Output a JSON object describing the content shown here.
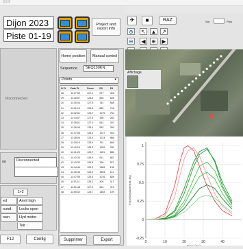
{
  "window": {
    "version": "3.6.0"
  },
  "header": {
    "location": "Dijon 2023",
    "track": "Piste 01-19",
    "project_button": "Project and report info"
  },
  "left_panel": {
    "status_label": "Disconnected",
    "connection_label": "on",
    "connection_value": "Disconnected",
    "range_button": "1>2",
    "state_buttons": [
      "ed",
      "ound",
      "own"
    ],
    "state_labels": [
      "Anvil high",
      "Locks open",
      "Hyd motor",
      "Tair :"
    ],
    "f12_label": "F12",
    "config_button": "Config"
  },
  "controls": {
    "home_button": "Home position",
    "manual_button": "Manual control",
    "sequence_label": "Sequence",
    "sequence_value": "SEQ130KN",
    "points_select": "Points",
    "delete_button": "Supprimer",
    "export_button": "Export"
  },
  "points_table": {
    "headers": [
      "N Pt",
      "Date Pt",
      "Force",
      "D0",
      "D1"
    ],
    "rows": [
      [
        "28",
        "11:27:50",
        "127.0",
        "577",
        "426"
      ],
      [
        "29",
        "11:28:57",
        "125.6",
        "826",
        "628"
      ],
      [
        "30",
        "11:30:04",
        "127.4",
        "781",
        "558"
      ],
      [
        "31",
        "11:31:19",
        "125.6",
        "889",
        "743"
      ],
      [
        "32",
        "11:32:51",
        "124.7",
        "1079",
        "752"
      ],
      [
        "33",
        "11:33:57",
        "127.5",
        "356",
        "283"
      ],
      [
        "34",
        "11:35:01",
        "127.0",
        "542",
        "397"
      ],
      [
        "35",
        "11:36:05",
        "126.4",
        "553",
        "399"
      ],
      [
        "36",
        "11:37:05",
        "126.2",
        "1227",
        "943"
      ],
      [
        "37",
        "11:38:04",
        "124.3",
        "1224",
        "866"
      ],
      [
        "38",
        "11:39:10",
        "125.9",
        "791",
        "669"
      ],
      [
        "39",
        "11:40:16",
        "125.3",
        "1269",
        "930"
      ],
      [
        "40",
        "11:41:24",
        "124.7",
        "1151",
        "886"
      ],
      [
        "41",
        "11:42:30",
        "126.9",
        "911",
        "667"
      ],
      [
        "42",
        "11:43:32",
        "126.8",
        "768",
        "527"
      ],
      [
        "43",
        "11:44:40",
        "122.3",
        "1383",
        "136"
      ],
      [
        "44",
        "11:45:45",
        "123.9",
        "1804",
        "111"
      ],
      [
        "45",
        "11:47:55",
        "125.6",
        "1076",
        "828"
      ],
      [
        "46",
        "11:51:11",
        "128.2",
        "400",
        "317"
      ],
      [
        "47",
        "11:51:48",
        "127.0",
        "644",
        "474"
      ],
      [
        "48",
        "11:55:32",
        "124.7",
        "1463",
        "109"
      ]
    ]
  },
  "map_toolbar": {
    "raz_button": "RAZ",
    "mini_labels": [
      "Sat",
      "Plan"
    ],
    "display_label": "Affichage"
  },
  "icons": {
    "satellite": "satellite-icon",
    "camera": "camera-icon",
    "zoom_in": "zoom-in-icon",
    "zoom_out": "zoom-out-icon",
    "zoom_fit": "zoom-fit-icon",
    "nav_nw": "arrow-up-left-icon",
    "nav_n": "arrow-up-icon",
    "nav_ne": "arrow-up-right-icon",
    "nav_w": "arrow-left-icon",
    "nav_center": "center-target-icon",
    "nav_e": "arrow-right-icon",
    "nav_sw": "arrow-down-left-icon",
    "nav_s": "arrow-down-icon",
    "nav_se": "arrow-down-right-icon",
    "folder": "folder-icon"
  },
  "colors": {
    "folder_button": "#e0a000",
    "green_curve": "#2a9a3a",
    "red_curve": "#e05050",
    "selected_row": "#ffffff"
  },
  "chart_data": {
    "type": "line",
    "xlabel": "Time (ms)",
    "ylabel": "Force/Déplacement (kN)",
    "xlim": [
      0,
      50
    ],
    "ylim": [
      -0.25,
      1.05
    ],
    "xticks": [
      "0",
      "10",
      "20",
      "30",
      "40"
    ],
    "yticks": [
      "1",
      "0.75",
      "0.5",
      "0.25",
      "0",
      "-0.25"
    ],
    "series": [
      {
        "color": "#e05050",
        "x": [
          0,
          5,
          10,
          15,
          18,
          20,
          22,
          25,
          28,
          32,
          36,
          40,
          45
        ],
        "y": [
          0,
          0.01,
          0.08,
          0.45,
          0.8,
          0.97,
          1.0,
          0.93,
          0.72,
          0.45,
          0.25,
          0.12,
          0.05
        ]
      },
      {
        "color": "#f0a0a0",
        "x": [
          0,
          5,
          10,
          15,
          18,
          20,
          22,
          25,
          28,
          32,
          36,
          40,
          45
        ],
        "y": [
          0,
          0.01,
          0.05,
          0.3,
          0.62,
          0.82,
          0.93,
          0.97,
          0.86,
          0.6,
          0.35,
          0.18,
          0.08
        ]
      },
      {
        "color": "#2a9a3a",
        "x": [
          0,
          5,
          10,
          15,
          20,
          25,
          28,
          32,
          36,
          40,
          45
        ],
        "y": [
          0,
          0.0,
          0.02,
          0.1,
          0.35,
          0.72,
          0.88,
          0.95,
          0.8,
          0.5,
          0.25
        ]
      },
      {
        "color": "#2a9a3a",
        "x": [
          0,
          5,
          10,
          15,
          20,
          25,
          28,
          32,
          36,
          40,
          45
        ],
        "y": [
          0,
          0.0,
          0.02,
          0.12,
          0.42,
          0.78,
          0.92,
          0.97,
          0.78,
          0.45,
          0.22
        ]
      },
      {
        "color": "#4cbf55",
        "x": [
          0,
          5,
          10,
          15,
          20,
          25,
          28,
          32,
          36,
          40,
          45
        ],
        "y": [
          0,
          0.0,
          0.01,
          0.06,
          0.25,
          0.55,
          0.72,
          0.78,
          0.66,
          0.42,
          0.2
        ]
      },
      {
        "color": "#4cbf55",
        "x": [
          0,
          5,
          10,
          15,
          20,
          25,
          28,
          32,
          36,
          40,
          45
        ],
        "y": [
          0,
          0.0,
          0.01,
          0.05,
          0.2,
          0.45,
          0.58,
          0.64,
          0.55,
          0.35,
          0.17
        ]
      },
      {
        "color": "#1d7a2c",
        "x": [
          0,
          5,
          10,
          15,
          20,
          25,
          28,
          32,
          36,
          40,
          45
        ],
        "y": [
          0,
          0.0,
          0.01,
          0.04,
          0.15,
          0.32,
          0.42,
          0.47,
          0.42,
          0.28,
          0.14
        ]
      },
      {
        "color": "#88d48f",
        "x": [
          0,
          5,
          10,
          15,
          20,
          25,
          28,
          32,
          36,
          40,
          45
        ],
        "y": [
          0,
          0.0,
          0.0,
          0.03,
          0.1,
          0.22,
          0.3,
          0.33,
          0.29,
          0.2,
          0.1
        ]
      }
    ]
  }
}
